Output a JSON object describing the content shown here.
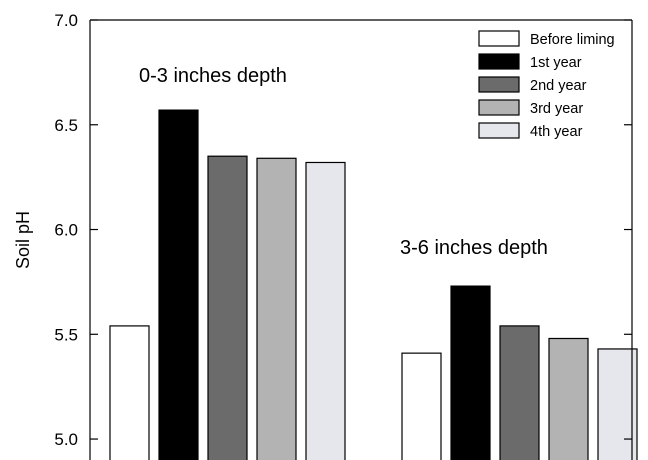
{
  "chart_data": {
    "type": "bar",
    "ylabel": "Soil pH",
    "ylim": [
      4.9,
      7.0
    ],
    "yticks": [
      5.0,
      5.5,
      6.0,
      6.5,
      7.0
    ],
    "ytick_labels": [
      "5.0",
      "5.5",
      "6.0",
      "6.5",
      "7.0"
    ],
    "grid": false,
    "legend_position": "top-right",
    "groups": [
      "0-3 inches depth",
      "3-6 inches depth"
    ],
    "series": [
      {
        "name": "Before liming",
        "color": "#ffffff",
        "values": [
          5.54,
          5.41
        ]
      },
      {
        "name": "1st year",
        "color": "#000000",
        "values": [
          6.57,
          5.73
        ]
      },
      {
        "name": "2nd year",
        "color": "#6b6b6b",
        "values": [
          6.35,
          5.54
        ]
      },
      {
        "name": "3rd year",
        "color": "#b3b3b3",
        "values": [
          6.34,
          5.48
        ]
      },
      {
        "name": "4th year",
        "color": "#e6e6ed",
        "values": [
          6.32,
          5.43
        ]
      }
    ]
  }
}
